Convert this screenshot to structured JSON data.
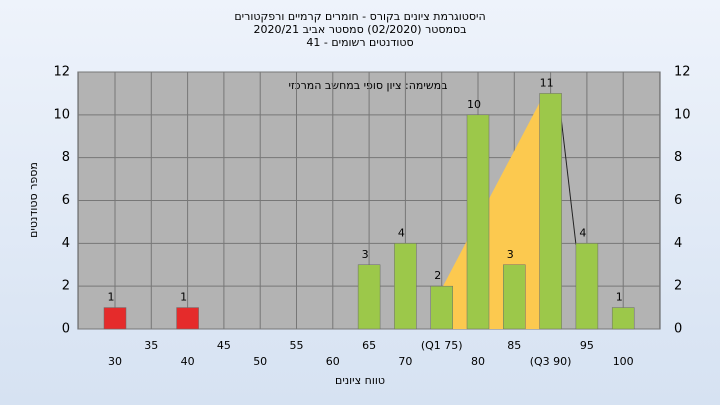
{
  "chart_data": {
    "type": "bar",
    "title": "היסטוגרמת ציונים בקורס - חומרים קרמיים ורפקטורים",
    "subtitle": "בסמסטר  (02/2020)  סמסטר אביב 2020/21",
    "subtitle2": "סטודנטים רשומים - 41",
    "annotation": "במשימה: ציון סופי במחשב המרכזי",
    "x_label": "טווח ציונים",
    "y_label": "מספר סטודנטים",
    "categories": [
      "30",
      "35",
      "40",
      "45",
      "50",
      "55",
      "60",
      "65",
      "70",
      "(Q1 75)",
      "80",
      "85",
      "(Q3 90)",
      "95",
      "100"
    ],
    "values": [
      1,
      0,
      1,
      0,
      0,
      0,
      0,
      3,
      4,
      2,
      10,
      3,
      11,
      4,
      1
    ],
    "colors": [
      "#e52b2b",
      "#e52b2b",
      "#e52b2b",
      "#e52b2b",
      "#e52b2b",
      "#e52b2b",
      "#9cc84a",
      "#9cc84a",
      "#9cc84a",
      "#9cc84a",
      "#9cc84a",
      "#9cc84a",
      "#9cc84a",
      "#9cc84a",
      "#9cc84a"
    ],
    "ylim": [
      0,
      12
    ],
    "yticks": [
      0,
      2,
      4,
      6,
      8,
      10,
      12
    ],
    "grid": true
  }
}
